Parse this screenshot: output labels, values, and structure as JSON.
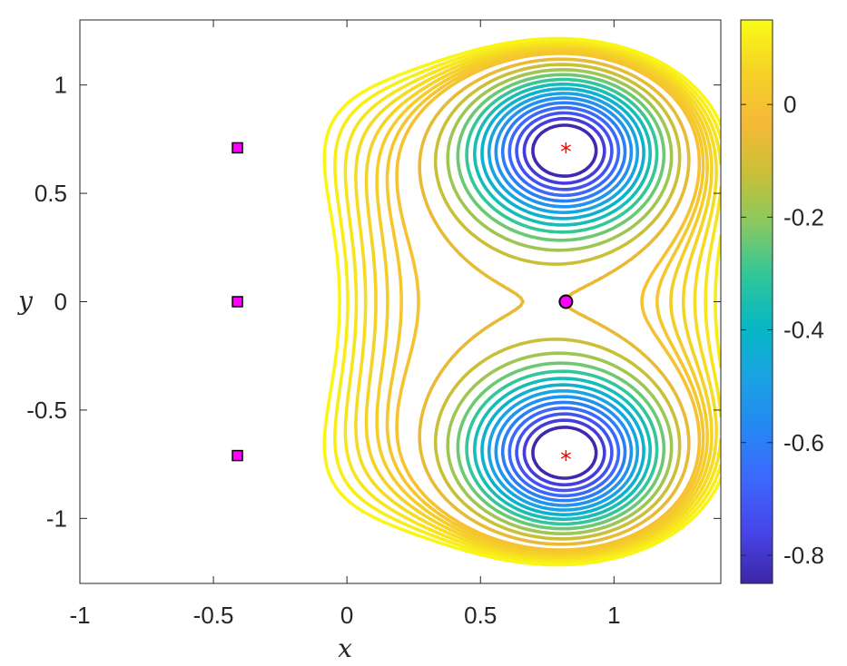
{
  "chart_data": {
    "type": "contour",
    "xlabel": "x",
    "ylabel": "y",
    "xlim": [
      -1,
      1.4
    ],
    "ylim": [
      -1.3,
      1.3
    ],
    "x_ticks": [
      -1,
      -0.5,
      0,
      0.5,
      1
    ],
    "x_tick_labels": [
      "-1",
      "-0.5",
      "0",
      "0.5",
      "1"
    ],
    "y_ticks": [
      -1,
      -0.5,
      0,
      0.5,
      1
    ],
    "y_tick_labels": [
      "-1",
      "-0.5",
      "0",
      "0.5",
      "1"
    ],
    "grid": false,
    "colorbar": {
      "range": [
        -0.85,
        0.15
      ],
      "ticks": [
        -0.8,
        -0.6,
        -0.4,
        -0.2,
        0
      ],
      "tick_labels": [
        "-0.8",
        "-0.6",
        "-0.4",
        "-0.2",
        "0"
      ],
      "colormap": "parula"
    },
    "colormap_stops": [
      "#3e26a8",
      "#4744e8",
      "#3d66fd",
      "#2587f4",
      "#1ba2e4",
      "#07b7c4",
      "#2fc69a",
      "#86c962",
      "#c9c037",
      "#f6b937",
      "#f5d227",
      "#f9fb15"
    ],
    "contour_levels": [
      -0.84,
      -0.78,
      -0.72,
      -0.66,
      -0.6,
      -0.54,
      -0.48,
      -0.42,
      -0.36,
      -0.3,
      -0.24,
      -0.18,
      -0.12,
      -0.06,
      0.0,
      0.02,
      0.04,
      0.06,
      0.08,
      0.1,
      0.12,
      0.14
    ],
    "markers": {
      "squares": [
        {
          "x": -0.41,
          "y": 0.71
        },
        {
          "x": -0.41,
          "y": 0.0
        },
        {
          "x": -0.41,
          "y": -0.71
        }
      ],
      "circle": {
        "x": 0.82,
        "y": 0.0
      },
      "stars": [
        {
          "x": 0.82,
          "y": 0.71
        },
        {
          "x": 0.82,
          "y": -0.71
        }
      ]
    },
    "marker_colors": {
      "square_fill": "#ff00ff",
      "star": "#ff0000",
      "circle_fill": "#ff00ff",
      "edge": "#000000"
    }
  }
}
